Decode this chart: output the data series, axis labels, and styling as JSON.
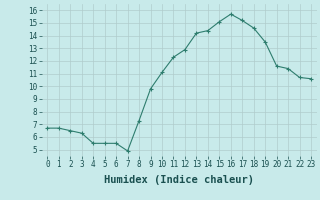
{
  "x": [
    0,
    1,
    2,
    3,
    4,
    5,
    6,
    7,
    8,
    9,
    10,
    11,
    12,
    13,
    14,
    15,
    16,
    17,
    18,
    19,
    20,
    21,
    22,
    23
  ],
  "y": [
    6.7,
    6.7,
    6.5,
    6.3,
    5.5,
    5.5,
    5.5,
    4.9,
    7.3,
    9.8,
    11.1,
    12.3,
    12.9,
    14.2,
    14.4,
    15.1,
    15.7,
    15.2,
    14.6,
    13.5,
    11.6,
    11.4,
    10.7,
    10.6
  ],
  "line_color": "#2e7d6e",
  "marker": "+",
  "marker_size": 3,
  "marker_linewidth": 0.8,
  "line_width": 0.8,
  "bg_color": "#c8eaea",
  "grid_color": "#b0cccc",
  "xlabel": "Humidex (Indice chaleur)",
  "ylim": [
    4.5,
    16.5
  ],
  "xlim": [
    -0.5,
    23.5
  ],
  "yticks": [
    5,
    6,
    7,
    8,
    9,
    10,
    11,
    12,
    13,
    14,
    15,
    16
  ],
  "xticks": [
    0,
    1,
    2,
    3,
    4,
    5,
    6,
    7,
    8,
    9,
    10,
    11,
    12,
    13,
    14,
    15,
    16,
    17,
    18,
    19,
    20,
    21,
    22,
    23
  ],
  "xtick_labels": [
    "0",
    "1",
    "2",
    "3",
    "4",
    "5",
    "6",
    "7",
    "8",
    "9",
    "10",
    "11",
    "12",
    "13",
    "14",
    "15",
    "16",
    "17",
    "18",
    "19",
    "20",
    "21",
    "22",
    "23"
  ],
  "tick_fontsize": 5.5,
  "xlabel_fontsize": 7.5,
  "text_color": "#1a5050"
}
